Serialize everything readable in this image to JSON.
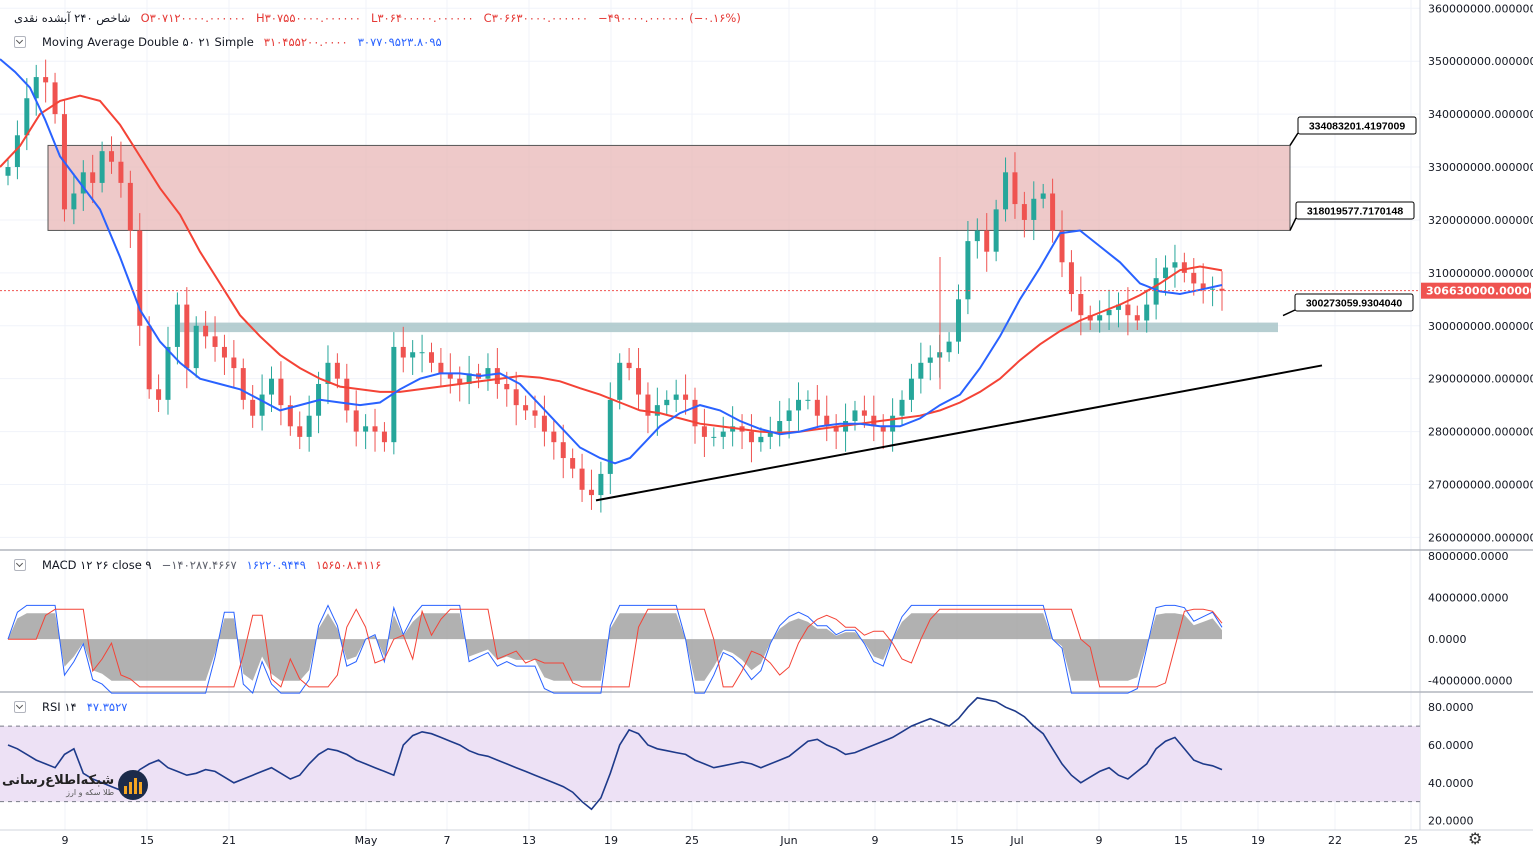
{
  "header": {
    "symbol": "شاخص ۲۴۰ آبشده نقدی",
    "open": "O۳۰۷۱۲۰۰۰۰.۰۰۰۰۰۰",
    "high": "H۳۰۷۵۵۰۰۰۰.۰۰۰۰۰۰",
    "low": "L۳۰۶۴۰۰۰۰۰.۰۰۰۰۰۰",
    "close": "C۳۰۶۶۳۰۰۰۰.۰۰۰۰۰۰",
    "change": "−۴۹۰۰۰۰.۰۰۰۰۰۰ (−۰.۱۶%)"
  },
  "ma_legend": {
    "label": "Moving Average Double ۵۰ ۲۱ Simple",
    "v1": "۳۱۰۴۵۵۲۰۰.۰۰۰۰",
    "v2": "۳۰۷۷۰۹۵۲۳.۸۰۹۵"
  },
  "macd_legend": {
    "label": "MACD ۱۲ ۲۶ close ۹",
    "hist": "−۱۴۰۲۸۷.۴۶۶۷",
    "macd": "۱۶۲۲۰.۹۴۴۹",
    "signal": "۱۵۶۵۰۸.۴۱۱۶"
  },
  "rsi_legend": {
    "label": "RSI ۱۴",
    "value": "۴۷.۳۵۲۷"
  },
  "logo": {
    "name": "شبکه‌اطلاع‌رسانی",
    "sub": "طلا سکه و ارز"
  },
  "colors": {
    "up": "#26a69a",
    "down": "#ef5350",
    "ma_fast": "#2962ff",
    "ma_slow": "#f44336",
    "resistance_zone": "#e8b7b7",
    "support_zone": "#a9c6c9",
    "rsi_band": "#ede1f5"
  },
  "chart_data": {
    "type": "candlestick",
    "y_ticks": [
      "360000000.0000000",
      "350000000.0000000",
      "340000000.0000000",
      "330000000.0000000",
      "320000000.0000000",
      "310000000.0000000",
      "300000000.0000000",
      "290000000.0000000",
      "280000000.0000000",
      "270000000.0000000",
      "260000000.0000000"
    ],
    "ylim": [
      258000000,
      361000000
    ],
    "last_price_label": "306630000.0000000",
    "last_price": 306630000,
    "price_labels": [
      "334083201.4197009",
      "318019577.7170148",
      "300273059.9304040"
    ],
    "resistance_zone": [
      318019577.717,
      334083201.4197
    ],
    "support_zone": [
      298800000,
      300600000
    ],
    "x_ticks": [
      "9",
      "15",
      "21",
      "May",
      "7",
      "13",
      "19",
      "25",
      "Jun",
      "9",
      "15",
      "Jul",
      "9",
      "15",
      "19",
      "22",
      "25"
    ],
    "closes": [
      330000000,
      336000000,
      343000000,
      347000000,
      346000000,
      340000000,
      322000000,
      325000000,
      329000000,
      327000000,
      333000000,
      331000000,
      327000000,
      318000000,
      300000000,
      288000000,
      286000000,
      296000000,
      304000000,
      292000000,
      300000000,
      298000000,
      296000000,
      294000000,
      292000000,
      286000000,
      283000000,
      287000000,
      290000000,
      285000000,
      281000000,
      279000000,
      283000000,
      289000000,
      293000000,
      290000000,
      284000000,
      280000000,
      281000000,
      280000000,
      278000000,
      296000000,
      294000000,
      295000000,
      295000000,
      293000000,
      291000000,
      290000000,
      289000000,
      291000000,
      290000000,
      292000000,
      289000000,
      288000000,
      285000000,
      284000000,
      283000000,
      280000000,
      278000000,
      275000000,
      273000000,
      269000000,
      268000000,
      272000000,
      286000000,
      293000000,
      292000000,
      287000000,
      283000000,
      285000000,
      286000000,
      287000000,
      286000000,
      281000000,
      279000000,
      279000000,
      280000000,
      281000000,
      280000000,
      278000000,
      279000000,
      280000000,
      282000000,
      284000000,
      286000000,
      286000000,
      283000000,
      281000000,
      280000000,
      282000000,
      284000000,
      283000000,
      281000000,
      280000000,
      283000000,
      286000000,
      290000000,
      293000000,
      294000000,
      295000000,
      297000000,
      305000000,
      316000000,
      318000000,
      314000000,
      322000000,
      329000000,
      323000000,
      320000000,
      324000000,
      325000000,
      318000000,
      312000000,
      306000000,
      302000000,
      301000000,
      302000000,
      303000000,
      304000000,
      302000000,
      301000000,
      304000000,
      309000000,
      311000000,
      312000000,
      310000000,
      308000000,
      307000000,
      307000000,
      306630000
    ],
    "ma_fast_curve": [
      [
        0,
        350400000
      ],
      [
        15,
        348000000
      ],
      [
        30,
        345000000
      ],
      [
        45,
        339000000
      ],
      [
        60,
        332000000
      ],
      [
        80,
        327000000
      ],
      [
        100,
        322000000
      ],
      [
        120,
        313000000
      ],
      [
        140,
        303000000
      ],
      [
        160,
        297000000
      ],
      [
        180,
        293000000
      ],
      [
        200,
        290000000
      ],
      [
        220,
        289000000
      ],
      [
        240,
        288000000
      ],
      [
        260,
        286000000
      ],
      [
        280,
        284000000
      ],
      [
        300,
        285000000
      ],
      [
        320,
        286000000
      ],
      [
        340,
        285500000
      ],
      [
        360,
        285000000
      ],
      [
        380,
        285500000
      ],
      [
        400,
        288000000
      ],
      [
        420,
        290000000
      ],
      [
        440,
        291000000
      ],
      [
        460,
        291000000
      ],
      [
        480,
        290500000
      ],
      [
        500,
        291000000
      ],
      [
        520,
        289000000
      ],
      [
        540,
        285000000
      ],
      [
        560,
        281000000
      ],
      [
        580,
        277000000
      ],
      [
        600,
        275000000
      ],
      [
        615,
        274000000
      ],
      [
        630,
        275000000
      ],
      [
        645,
        278000000
      ],
      [
        660,
        281000000
      ],
      [
        680,
        283500000
      ],
      [
        700,
        285000000
      ],
      [
        720,
        284000000
      ],
      [
        740,
        282000000
      ],
      [
        760,
        280500000
      ],
      [
        780,
        279500000
      ],
      [
        800,
        280000000
      ],
      [
        820,
        281000000
      ],
      [
        840,
        281500000
      ],
      [
        860,
        281500000
      ],
      [
        880,
        281000000
      ],
      [
        900,
        281000000
      ],
      [
        920,
        282500000
      ],
      [
        940,
        285000000
      ],
      [
        960,
        287000000
      ],
      [
        980,
        292000000
      ],
      [
        1000,
        298000000
      ],
      [
        1020,
        305000000
      ],
      [
        1040,
        311000000
      ],
      [
        1060,
        317500000
      ],
      [
        1080,
        318000000
      ],
      [
        1100,
        315000000
      ],
      [
        1120,
        312000000
      ],
      [
        1140,
        308000000
      ],
      [
        1160,
        306500000
      ],
      [
        1180,
        306000000
      ],
      [
        1200,
        306800000
      ],
      [
        1222,
        307700000
      ]
    ],
    "ma_slow_curve": [
      [
        0,
        330000000
      ],
      [
        20,
        334000000
      ],
      [
        40,
        340000000
      ],
      [
        60,
        342500000
      ],
      [
        80,
        343500000
      ],
      [
        100,
        342500000
      ],
      [
        120,
        338000000
      ],
      [
        140,
        332000000
      ],
      [
        160,
        326000000
      ],
      [
        180,
        321000000
      ],
      [
        200,
        314000000
      ],
      [
        220,
        308000000
      ],
      [
        240,
        302000000
      ],
      [
        260,
        298000000
      ],
      [
        280,
        294500000
      ],
      [
        300,
        292000000
      ],
      [
        320,
        290000000
      ],
      [
        340,
        288500000
      ],
      [
        360,
        288000000
      ],
      [
        380,
        287500000
      ],
      [
        400,
        287500000
      ],
      [
        420,
        288000000
      ],
      [
        440,
        288500000
      ],
      [
        460,
        289000000
      ],
      [
        480,
        289500000
      ],
      [
        500,
        290000000
      ],
      [
        520,
        290500000
      ],
      [
        540,
        290200000
      ],
      [
        560,
        289500000
      ],
      [
        580,
        288200000
      ],
      [
        600,
        287000000
      ],
      [
        620,
        285500000
      ],
      [
        640,
        284000000
      ],
      [
        660,
        283500000
      ],
      [
        680,
        282500000
      ],
      [
        700,
        281500000
      ],
      [
        720,
        281000000
      ],
      [
        740,
        280500000
      ],
      [
        760,
        280000000
      ],
      [
        780,
        279800000
      ],
      [
        800,
        280000000
      ],
      [
        820,
        280500000
      ],
      [
        840,
        281000000
      ],
      [
        860,
        281500000
      ],
      [
        880,
        282000000
      ],
      [
        900,
        282500000
      ],
      [
        920,
        283000000
      ],
      [
        940,
        284000000
      ],
      [
        960,
        285500000
      ],
      [
        980,
        287500000
      ],
      [
        1000,
        290000000
      ],
      [
        1020,
        293500000
      ],
      [
        1040,
        296500000
      ],
      [
        1060,
        299000000
      ],
      [
        1080,
        301000000
      ],
      [
        1100,
        302500000
      ],
      [
        1120,
        304000000
      ],
      [
        1140,
        305800000
      ],
      [
        1160,
        308000000
      ],
      [
        1180,
        310500000
      ],
      [
        1200,
        311200000
      ],
      [
        1222,
        310455200
      ]
    ],
    "trendline": [
      [
        596,
        267000000
      ],
      [
        1322,
        292500000
      ]
    ],
    "macd": {
      "y_ticks": [
        "8000000.0000",
        "4000000.0000",
        "0.0000",
        "-4000000.0000"
      ],
      "ylim": [
        -4900000,
        8400000
      ]
    },
    "rsi": {
      "y_ticks": [
        "80.0000",
        "60.0000",
        "40.0000",
        "20.0000"
      ],
      "ylim": [
        15,
        87
      ],
      "band": [
        30,
        70
      ],
      "values": [
        60,
        58,
        55,
        52,
        50,
        48,
        55,
        58,
        45,
        42,
        40,
        38,
        36,
        42,
        47,
        50,
        52,
        48,
        46,
        44,
        45,
        47,
        46,
        43,
        40,
        42,
        44,
        46,
        48,
        45,
        42,
        44,
        50,
        55,
        58,
        57,
        55,
        52,
        50,
        48,
        46,
        44,
        60,
        65,
        67,
        66,
        64,
        62,
        60,
        57,
        55,
        54,
        52,
        50,
        48,
        46,
        44,
        42,
        40,
        38,
        35,
        30,
        26,
        32,
        45,
        60,
        68,
        66,
        60,
        58,
        57,
        56,
        55,
        52,
        50,
        48,
        49,
        50,
        51,
        50,
        48,
        50,
        52,
        54,
        58,
        62,
        63,
        60,
        58,
        55,
        56,
        58,
        60,
        62,
        64,
        67,
        70,
        72,
        74,
        72,
        70,
        74,
        80,
        85,
        84,
        83,
        80,
        78,
        75,
        70,
        66,
        58,
        50,
        44,
        40,
        43,
        46,
        48,
        44,
        42,
        46,
        50,
        58,
        62,
        64,
        58,
        52,
        50,
        49,
        47
      ]
    }
  }
}
